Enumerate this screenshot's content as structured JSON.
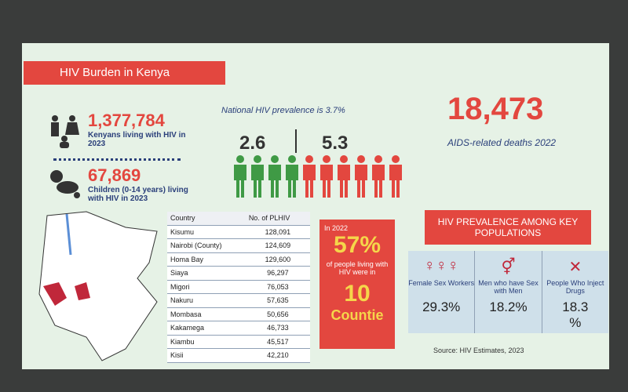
{
  "header": {
    "title": "HIV Burden in Kenya"
  },
  "stats": [
    {
      "number": "1,377,784",
      "label": "Kenyans living with HIV in 2023"
    },
    {
      "number": "67,869",
      "label": "Children (0-14 years) living with HIV in 2023"
    }
  ],
  "prevalence": {
    "label": "National HIV prevalence is 3.7%",
    "male": "2.6",
    "female": "5.3"
  },
  "deaths": {
    "number": "18,473",
    "label": "AIDS-related deaths 2022"
  },
  "table": {
    "header": [
      "Country",
      "No. of PLHIV"
    ],
    "rows": [
      [
        "Kisumu",
        "128,091"
      ],
      [
        "Nairobi (County)",
        "124,609"
      ],
      [
        "Homa Bay",
        "129,600"
      ],
      [
        "Siaya",
        "96,297"
      ],
      [
        "Migori",
        "76,053"
      ],
      [
        "Nakuru",
        "57,635"
      ],
      [
        "Mombasa",
        "50,656"
      ],
      [
        "Kakamega",
        "46,733"
      ],
      [
        "Kiambu",
        "45,517"
      ],
      [
        "Kisii",
        "42,210"
      ]
    ]
  },
  "callout": {
    "intro": "In 2022",
    "percent": "57%",
    "text": "of people living with HIV were in",
    "count": "10",
    "unit": "Countie"
  },
  "key_populations": {
    "title": "HIV PREVALENCE AMONG KEY POPULATIONS",
    "groups": [
      {
        "name": "Female Sex Workers",
        "value": "29.3%"
      },
      {
        "name": "Men who have Sex with Men",
        "value": "18.2%"
      },
      {
        "name": "People Who Inject Drugs",
        "value": "18.3",
        "unit": "%"
      }
    ],
    "source": "Source: HIV Estimates, 2023"
  }
}
